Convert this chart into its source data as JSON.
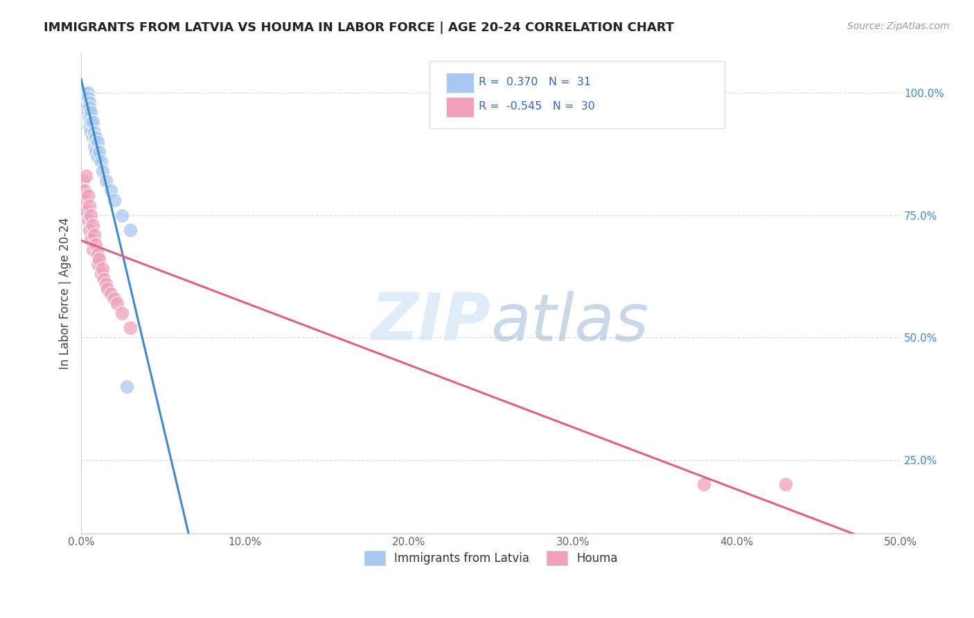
{
  "title": "IMMIGRANTS FROM LATVIA VS HOUMA IN LABOR FORCE | AGE 20-24 CORRELATION CHART",
  "source": "Source: ZipAtlas.com",
  "ylabel": "In Labor Force | Age 20-24",
  "xlim": [
    0.0,
    0.5
  ],
  "ylim": [
    0.1,
    1.08
  ],
  "xticks": [
    0.0,
    0.1,
    0.2,
    0.3,
    0.4,
    0.5
  ],
  "xtick_labels": [
    "0.0%",
    "10.0%",
    "20.0%",
    "30.0%",
    "40.0%",
    "50.0%"
  ],
  "yticks": [
    0.25,
    0.5,
    0.75,
    1.0
  ],
  "ytick_labels": [
    "25.0%",
    "50.0%",
    "75.0%",
    "100.0%"
  ],
  "blue_R": 0.37,
  "blue_N": 31,
  "pink_R": -0.545,
  "pink_N": 30,
  "blue_color": "#a8c8f0",
  "pink_color": "#f0a0b8",
  "blue_line_color": "#4488cc",
  "pink_line_color": "#e06080",
  "legend_label_blue": "Immigrants from Latvia",
  "legend_label_pink": "Houma",
  "watermark_zip": "ZIP",
  "watermark_atlas": "atlas",
  "blue_scatter_x": [
    0.002,
    0.002,
    0.003,
    0.003,
    0.004,
    0.004,
    0.004,
    0.005,
    0.005,
    0.005,
    0.005,
    0.006,
    0.006,
    0.006,
    0.007,
    0.007,
    0.008,
    0.008,
    0.009,
    0.009,
    0.01,
    0.01,
    0.011,
    0.012,
    0.013,
    0.015,
    0.018,
    0.02,
    0.025,
    0.028,
    0.03
  ],
  "blue_scatter_y": [
    1.0,
    0.99,
    0.98,
    0.97,
    1.0,
    0.99,
    0.96,
    0.98,
    0.97,
    0.95,
    0.93,
    0.96,
    0.94,
    0.92,
    0.94,
    0.91,
    0.92,
    0.89,
    0.91,
    0.88,
    0.9,
    0.87,
    0.88,
    0.86,
    0.84,
    0.82,
    0.8,
    0.78,
    0.75,
    0.4,
    0.72
  ],
  "pink_scatter_x": [
    0.001,
    0.002,
    0.002,
    0.003,
    0.003,
    0.004,
    0.004,
    0.005,
    0.005,
    0.006,
    0.006,
    0.007,
    0.007,
    0.008,
    0.009,
    0.01,
    0.01,
    0.011,
    0.012,
    0.013,
    0.014,
    0.015,
    0.016,
    0.018,
    0.02,
    0.022,
    0.025,
    0.03,
    0.38,
    0.43
  ],
  "pink_scatter_y": [
    0.82,
    0.8,
    0.78,
    0.83,
    0.76,
    0.79,
    0.74,
    0.77,
    0.72,
    0.75,
    0.7,
    0.73,
    0.68,
    0.71,
    0.69,
    0.67,
    0.65,
    0.66,
    0.63,
    0.64,
    0.62,
    0.61,
    0.6,
    0.59,
    0.58,
    0.57,
    0.55,
    0.52,
    0.2,
    0.2
  ],
  "background_color": "#ffffff",
  "grid_color": "#dddddd"
}
